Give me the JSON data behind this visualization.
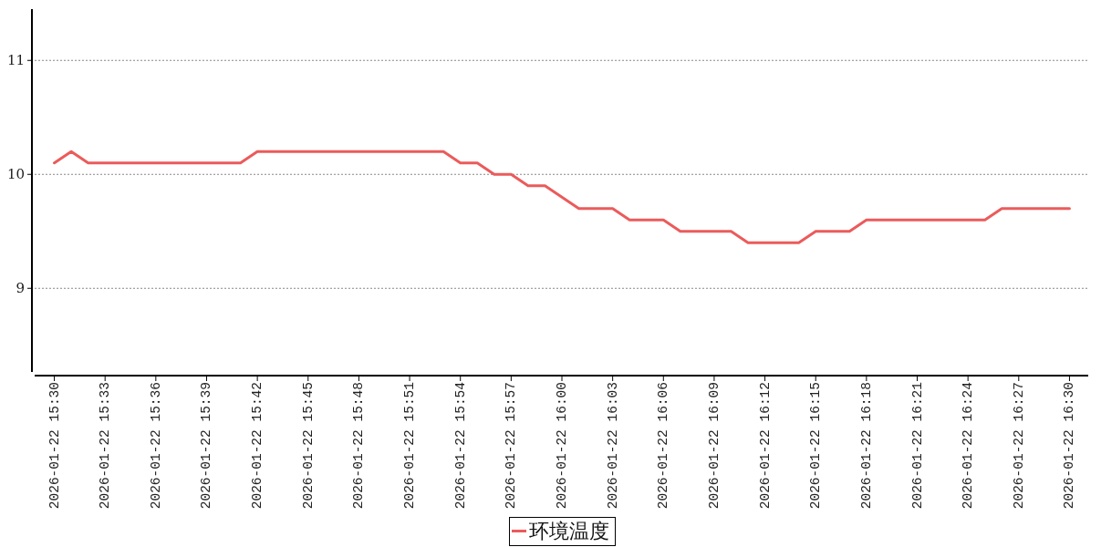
{
  "chart_data": {
    "type": "line",
    "x": [
      "2026-01-22T15:30",
      "2026-01-22T15:31",
      "2026-01-22T15:32",
      "2026-01-22T15:33",
      "2026-01-22T15:34",
      "2026-01-22T15:35",
      "2026-01-22T15:36",
      "2026-01-22T15:37",
      "2026-01-22T15:38",
      "2026-01-22T15:39",
      "2026-01-22T15:40",
      "2026-01-22T15:41",
      "2026-01-22T15:42",
      "2026-01-22T15:43",
      "2026-01-22T15:44",
      "2026-01-22T15:45",
      "2026-01-22T15:46",
      "2026-01-22T15:47",
      "2026-01-22T15:48",
      "2026-01-22T15:49",
      "2026-01-22T15:50",
      "2026-01-22T15:51",
      "2026-01-22T15:52",
      "2026-01-22T15:53",
      "2026-01-22T15:54",
      "2026-01-22T15:55",
      "2026-01-22T15:56",
      "2026-01-22T15:57",
      "2026-01-22T15:58",
      "2026-01-22T15:59",
      "2026-01-22T16:00",
      "2026-01-22T16:01",
      "2026-01-22T16:02",
      "2026-01-22T16:03",
      "2026-01-22T16:04",
      "2026-01-22T16:05",
      "2026-01-22T16:06",
      "2026-01-22T16:07",
      "2026-01-22T16:08",
      "2026-01-22T16:09",
      "2026-01-22T16:10",
      "2026-01-22T16:11",
      "2026-01-22T16:12",
      "2026-01-22T16:13",
      "2026-01-22T16:14",
      "2026-01-22T16:15",
      "2026-01-22T16:16",
      "2026-01-22T16:17",
      "2026-01-22T16:18",
      "2026-01-22T16:19",
      "2026-01-22T16:20",
      "2026-01-22T16:21",
      "2026-01-22T16:22",
      "2026-01-22T16:23",
      "2026-01-22T16:24",
      "2026-01-22T16:25",
      "2026-01-22T16:26",
      "2026-01-22T16:27",
      "2026-01-22T16:28",
      "2026-01-22T16:29",
      "2026-01-22T16:30"
    ],
    "series": [
      {
        "name": "环境温度",
        "color": "#eb5b5b",
        "values": [
          10.1,
          10.2,
          10.1,
          10.1,
          10.1,
          10.1,
          10.1,
          10.1,
          10.1,
          10.1,
          10.1,
          10.1,
          10.2,
          10.2,
          10.2,
          10.2,
          10.2,
          10.2,
          10.2,
          10.2,
          10.2,
          10.2,
          10.2,
          10.2,
          10.1,
          10.1,
          10.0,
          10.0,
          9.9,
          9.9,
          9.8,
          9.7,
          9.7,
          9.7,
          9.6,
          9.6,
          9.6,
          9.5,
          9.5,
          9.5,
          9.5,
          9.4,
          9.4,
          9.4,
          9.4,
          9.5,
          9.5,
          9.5,
          9.6,
          9.6,
          9.6,
          9.6,
          9.6,
          9.6,
          9.6,
          9.6,
          9.7,
          9.7,
          9.7,
          9.7,
          9.7
        ]
      }
    ],
    "xlim": [
      "2026-01-22T15:29",
      "2026-01-22T16:31"
    ],
    "xticks": [
      {
        "value": "2026-01-22T15:30",
        "label": "2026-01-22 15:30"
      },
      {
        "value": "2026-01-22T15:33",
        "label": "2026-01-22 15:33"
      },
      {
        "value": "2026-01-22T15:36",
        "label": "2026-01-22 15:36"
      },
      {
        "value": "2026-01-22T15:39",
        "label": "2026-01-22 15:39"
      },
      {
        "value": "2026-01-22T15:42",
        "label": "2026-01-22 15:42"
      },
      {
        "value": "2026-01-22T15:45",
        "label": "2026-01-22 15:45"
      },
      {
        "value": "2026-01-22T15:48",
        "label": "2026-01-22 15:48"
      },
      {
        "value": "2026-01-22T15:51",
        "label": "2026-01-22 15:51"
      },
      {
        "value": "2026-01-22T15:54",
        "label": "2026-01-22 15:54"
      },
      {
        "value": "2026-01-22T15:57",
        "label": "2026-01-22 15:57"
      },
      {
        "value": "2026-01-22T16:00",
        "label": "2026-01-22 16:00"
      },
      {
        "value": "2026-01-22T16:03",
        "label": "2026-01-22 16:03"
      },
      {
        "value": "2026-01-22T16:06",
        "label": "2026-01-22 16:06"
      },
      {
        "value": "2026-01-22T16:09",
        "label": "2026-01-22 16:09"
      },
      {
        "value": "2026-01-22T16:12",
        "label": "2026-01-22 16:12"
      },
      {
        "value": "2026-01-22T16:15",
        "label": "2026-01-22 16:15"
      },
      {
        "value": "2026-01-22T16:18",
        "label": "2026-01-22 16:18"
      },
      {
        "value": "2026-01-22T16:21",
        "label": "2026-01-22 16:21"
      },
      {
        "value": "2026-01-22T16:24",
        "label": "2026-01-22 16:24"
      },
      {
        "value": "2026-01-22T16:27",
        "label": "2026-01-22 16:27"
      },
      {
        "value": "2026-01-22T16:30",
        "label": "2026-01-22 16:30"
      }
    ],
    "ylim": [
      8.25,
      11.45
    ],
    "yticks": [
      9,
      10,
      11
    ],
    "grid": "y",
    "legend": "bottom"
  }
}
